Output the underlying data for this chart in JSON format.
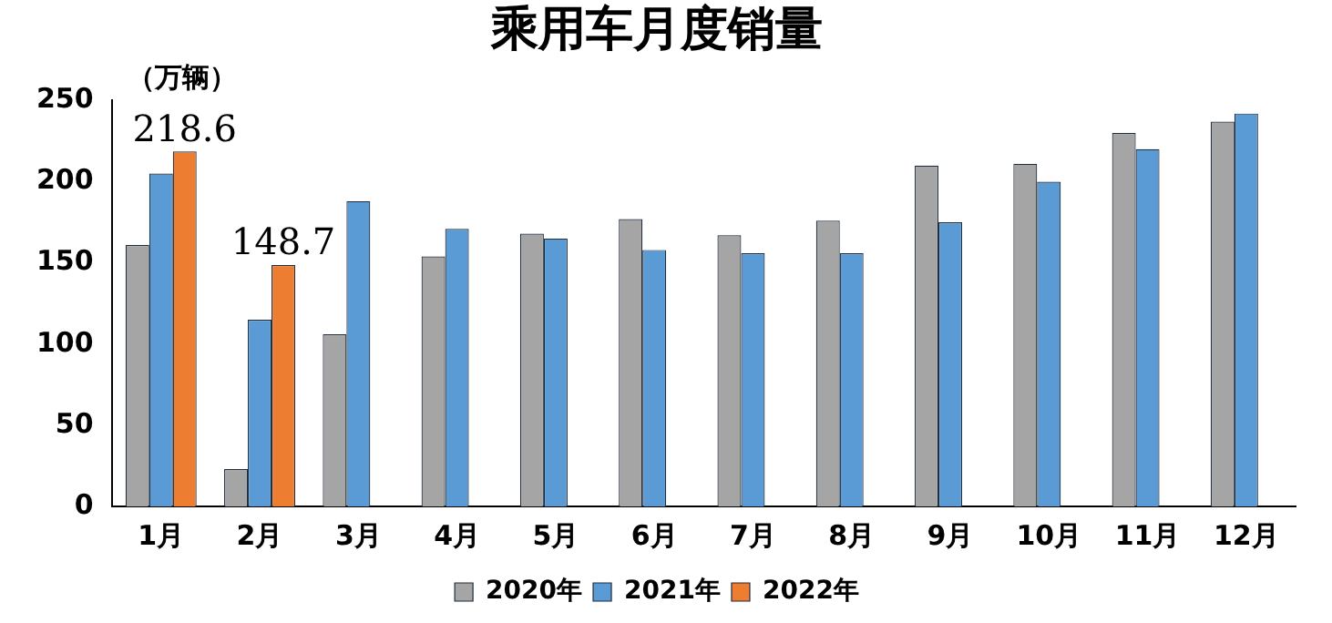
{
  "chart_data": {
    "type": "bar",
    "title": "乘用车月度销量",
    "ylabel": "（万辆）",
    "categories": [
      "1月",
      "2月",
      "3月",
      "4月",
      "5月",
      "6月",
      "7月",
      "8月",
      "9月",
      "10月",
      "11月",
      "12月"
    ],
    "series": [
      {
        "name": "2020年",
        "color": "#a5a5a5",
        "values": [
          161,
          23,
          106,
          154,
          168,
          177,
          167,
          176,
          210,
          211,
          230,
          237
        ]
      },
      {
        "name": "2021年",
        "color": "#5b9bd5",
        "values": [
          205,
          115,
          188,
          171,
          165,
          158,
          156,
          156,
          175,
          200,
          220,
          242
        ]
      },
      {
        "name": "2022年",
        "color": "#ed7d31",
        "values": [
          218.6,
          148.7,
          null,
          null,
          null,
          null,
          null,
          null,
          null,
          null,
          null,
          null
        ],
        "value_labels": [
          "218.6",
          "148.7",
          null,
          null,
          null,
          null,
          null,
          null,
          null,
          null,
          null,
          null
        ]
      }
    ],
    "ylim": [
      0,
      250
    ],
    "yticks": [
      0,
      50,
      100,
      150,
      200,
      250
    ],
    "grid": false,
    "legend": "bottom"
  }
}
